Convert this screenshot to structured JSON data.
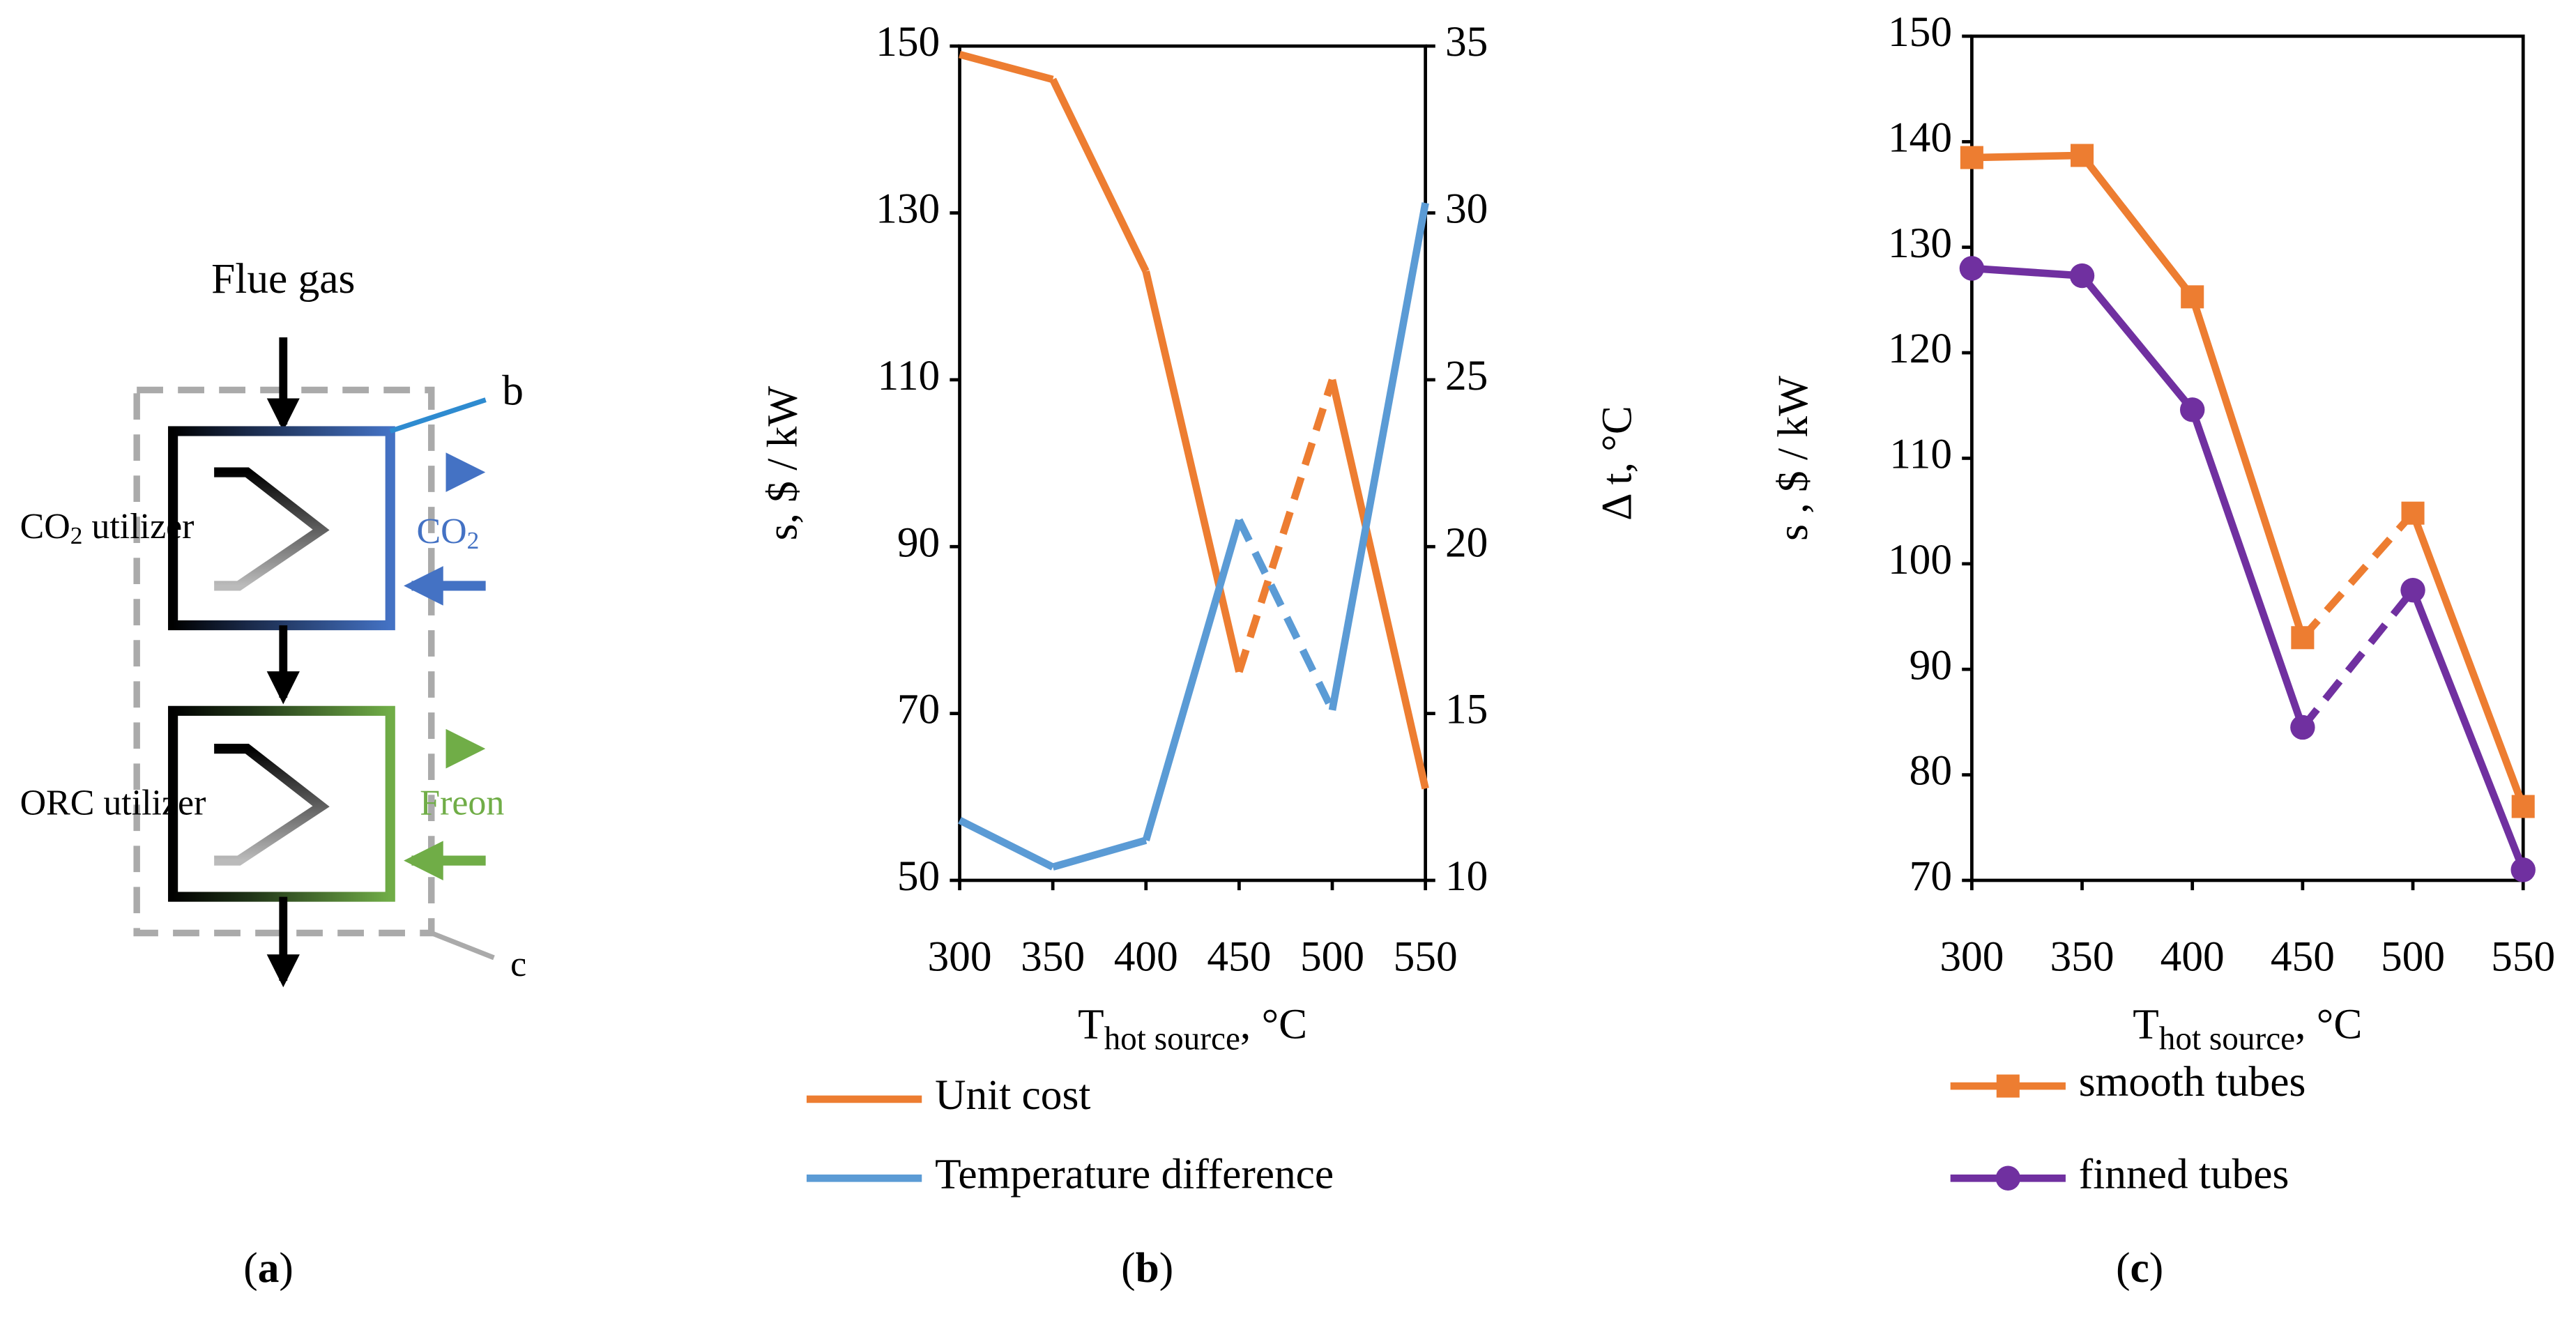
{
  "diagram": {
    "flue_gas": "Flue gas",
    "label_b": "b",
    "label_c": "c",
    "co2_utilizer": [
      "CO",
      "2",
      " utilizer"
    ],
    "co2": [
      "CO",
      "2"
    ],
    "orc_utilizer": "ORC utilizer",
    "freon": "Freon",
    "caption": [
      "(",
      "a",
      ")"
    ]
  },
  "chart_data": [
    {
      "type": "line",
      "caption": [
        "(",
        "b",
        ")"
      ],
      "x": [
        300,
        350,
        400,
        450,
        500,
        550
      ],
      "series": [
        {
          "name": "Unit cost",
          "color": "#ed7d31",
          "values": [
            149,
            146,
            123,
            75,
            110,
            61
          ]
        },
        {
          "name": "Temperature difference",
          "color": "#5b9bd5",
          "axis": "y2",
          "values": [
            11.8,
            10.4,
            11.2,
            20.8,
            15.1,
            30.3
          ]
        }
      ],
      "dashed_between": [
        450,
        500
      ],
      "xlim": [
        300,
        550
      ],
      "xticks": [
        300,
        350,
        400,
        450,
        500,
        550
      ],
      "ylim": [
        50,
        150
      ],
      "yticks": [
        50,
        70,
        90,
        110,
        130,
        150
      ],
      "y2lim": [
        10,
        35
      ],
      "y2ticks": [
        10,
        15,
        20,
        25,
        30,
        35
      ],
      "xlabel": [
        "T",
        "hot source",
        ", °C"
      ],
      "ylabel": "s, $ / kW",
      "y2label": "Δ t, °C",
      "legend": "bottom"
    },
    {
      "type": "line",
      "caption": [
        "(",
        "c",
        ")"
      ],
      "x": [
        300,
        350,
        400,
        450,
        500,
        550
      ],
      "series": [
        {
          "name": "smooth tubes",
          "color": "#ed7d31",
          "marker": "square",
          "values": [
            138.5,
            138.7,
            125.3,
            93,
            104.8,
            77
          ]
        },
        {
          "name": "finned tubes",
          "color": "#7030a0",
          "marker": "circle",
          "values": [
            128,
            127.3,
            114.6,
            84.5,
            97.5,
            71
          ]
        }
      ],
      "dashed_between": [
        450,
        500
      ],
      "xlim": [
        300,
        550
      ],
      "xticks": [
        300,
        350,
        400,
        450,
        500,
        550
      ],
      "ylim": [
        70,
        150
      ],
      "yticks": [
        70,
        80,
        90,
        100,
        110,
        120,
        130,
        140,
        150
      ],
      "xlabel": [
        "T",
        "hot source",
        ", °C"
      ],
      "ylabel": "s , $ / kW",
      "legend": "bottom"
    }
  ]
}
